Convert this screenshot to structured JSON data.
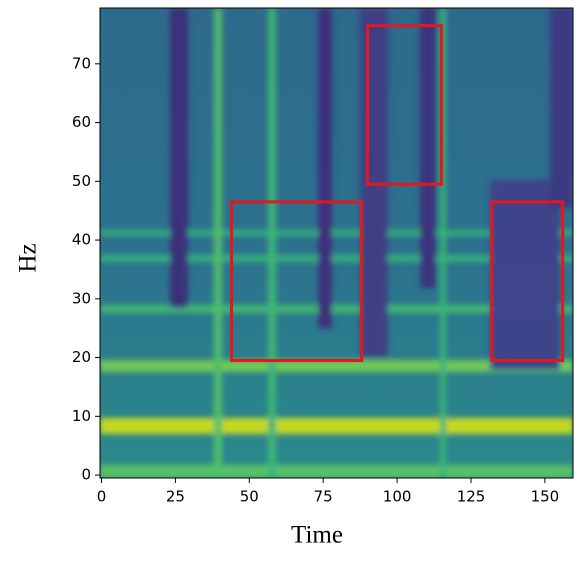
{
  "chart_data": {
    "type": "heatmap",
    "xlabel": "Time",
    "ylabel": "Hz",
    "xlim": [
      -0.5,
      159.5
    ],
    "ylim": [
      -0.5,
      79.5
    ],
    "xticks": [
      0,
      25,
      50,
      75,
      100,
      125,
      150
    ],
    "yticks": [
      0,
      10,
      20,
      30,
      40,
      50,
      60,
      70
    ],
    "annotation_color": "#e8161b",
    "annotations": [
      {
        "x": [
          44,
          88
        ],
        "y": [
          19.5,
          46.5
        ]
      },
      {
        "x": [
          90,
          115
        ],
        "y": [
          49.5,
          76.5
        ]
      },
      {
        "x": [
          132,
          156
        ],
        "y": [
          19.5,
          46.5
        ]
      }
    ]
  }
}
